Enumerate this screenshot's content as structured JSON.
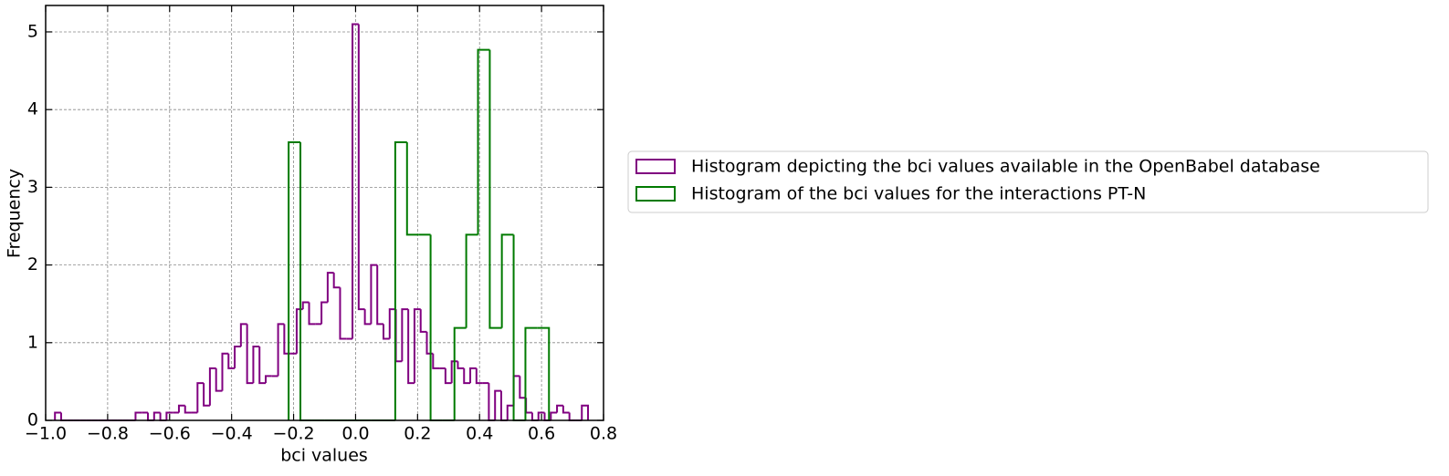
{
  "chart_data": {
    "type": "histogram",
    "xlabel": "bci values",
    "ylabel": "Frequency",
    "xlim": [
      -1.0,
      0.8
    ],
    "ylim": [
      0,
      5.34
    ],
    "xticks": [
      {
        "value": -1.0,
        "label": "−1.0"
      },
      {
        "value": -0.8,
        "label": "−0.8"
      },
      {
        "value": -0.6,
        "label": "−0.6"
      },
      {
        "value": -0.4,
        "label": "−0.4"
      },
      {
        "value": -0.2,
        "label": "−0.2"
      },
      {
        "value": 0.0,
        "label": "0.0"
      },
      {
        "value": 0.2,
        "label": "0.2"
      },
      {
        "value": 0.4,
        "label": "0.4"
      },
      {
        "value": 0.6,
        "label": "0.6"
      },
      {
        "value": 0.8,
        "label": "0.8"
      }
    ],
    "yticks": [
      0,
      1,
      2,
      3,
      4,
      5
    ],
    "grid": true,
    "legend": "outside right",
    "series": [
      {
        "name": "Histogram depicting the bci values available in the OpenBabel database",
        "color": "#800080",
        "bins": [
          -0.97,
          -0.95,
          -0.93,
          -0.91,
          -0.89,
          -0.87,
          -0.85,
          -0.83,
          -0.81,
          -0.79,
          -0.77,
          -0.75,
          -0.73,
          -0.71,
          -0.69,
          -0.67,
          -0.65,
          -0.63,
          -0.61,
          -0.59,
          -0.57,
          -0.55,
          -0.53,
          -0.51,
          -0.49,
          -0.47,
          -0.45,
          -0.43,
          -0.41,
          -0.39,
          -0.37,
          -0.35,
          -0.33,
          -0.31,
          -0.29,
          -0.27,
          -0.25,
          -0.23,
          -0.21,
          -0.19,
          -0.17,
          -0.15,
          -0.13,
          -0.11,
          -0.09,
          -0.07,
          -0.05,
          -0.03,
          -0.01,
          0.01,
          0.03,
          0.05,
          0.07,
          0.09,
          0.11,
          0.13,
          0.15,
          0.17,
          0.19,
          0.21,
          0.23,
          0.25,
          0.27,
          0.29,
          0.31,
          0.33,
          0.35,
          0.37,
          0.39,
          0.41,
          0.43,
          0.45,
          0.47,
          0.49,
          0.51,
          0.53,
          0.55,
          0.57,
          0.59,
          0.61,
          0.63,
          0.65,
          0.67,
          0.69,
          0.71,
          0.73,
          0.75
        ],
        "values": [
          0.1,
          0,
          0,
          0,
          0,
          0,
          0,
          0,
          0,
          0,
          0,
          0,
          0,
          0.1,
          0.1,
          0,
          0.1,
          0,
          0.1,
          0.1,
          0.19,
          0.1,
          0.1,
          0.48,
          0.19,
          0.67,
          0.38,
          0.86,
          0.67,
          0.95,
          1.24,
          0.48,
          0.95,
          0.48,
          0.57,
          0.57,
          1.24,
          0.86,
          0.86,
          1.43,
          1.52,
          1.24,
          1.24,
          1.52,
          1.9,
          1.71,
          1.05,
          1.05,
          5.1,
          1.43,
          1.24,
          2.0,
          1.24,
          1.05,
          1.43,
          0.76,
          1.43,
          0.48,
          1.43,
          1.14,
          0.86,
          0.67,
          0.67,
          0.48,
          0.76,
          0.67,
          0.48,
          0.67,
          0.48,
          0.48,
          0,
          0.38,
          0,
          0.19,
          0.57,
          0.29,
          0.1,
          0,
          0.1,
          0,
          0.1,
          0.19,
          0.1,
          0,
          0,
          0.19
        ]
      },
      {
        "name": "Histogram of the bci values for the interactions PT-N",
        "color": "#007a00",
        "bins": [
          -0.216,
          -0.178,
          -0.14,
          -0.101,
          -0.063,
          -0.025,
          0.013,
          0.051,
          0.09,
          0.128,
          0.166,
          0.204,
          0.242,
          0.281,
          0.319,
          0.357,
          0.395,
          0.433,
          0.472,
          0.51,
          0.548,
          0.586,
          0.624
        ],
        "values": [
          3.58,
          0,
          0,
          0,
          0,
          0,
          0,
          0,
          0,
          3.58,
          2.39,
          2.39,
          0,
          0,
          1.19,
          2.39,
          4.77,
          1.19,
          2.39,
          0,
          1.19,
          1.19
        ]
      }
    ]
  }
}
